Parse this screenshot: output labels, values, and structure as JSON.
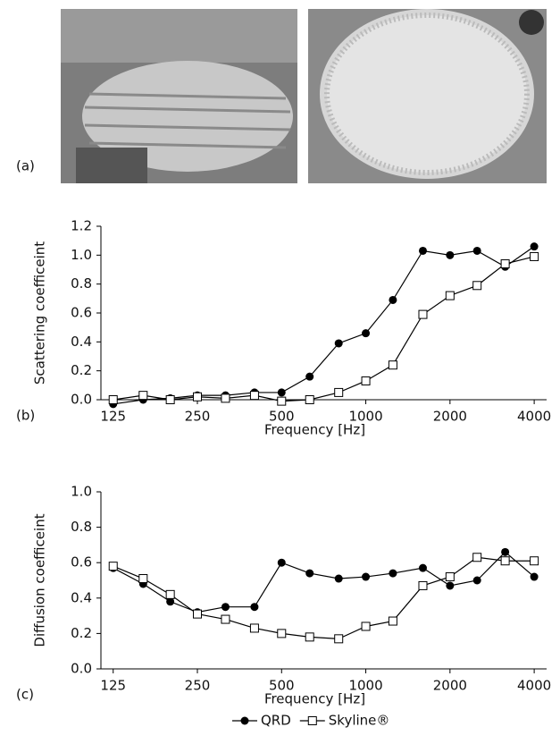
{
  "panel_labels": [
    "(a)",
    "(b)",
    "(c)"
  ],
  "chart_data": [
    {
      "type": "line",
      "x_label": "Frequency [Hz]",
      "y_label": "Scattering coefficeint",
      "x": [
        125,
        160,
        200,
        250,
        315,
        400,
        500,
        630,
        800,
        1000,
        1250,
        1600,
        2000,
        2500,
        3150,
        4000
      ],
      "x_scale": "log",
      "xlim": [
        113,
        4430
      ],
      "xticks": [
        125,
        250,
        500,
        1000,
        2000,
        4000
      ],
      "ylim": [
        0,
        1.2
      ],
      "yticks": [
        {
          "value": 0,
          "label": "0.0"
        },
        0.2,
        0.4,
        0.6,
        0.8,
        {
          "value": 1,
          "label": "1.0"
        },
        1.2
      ],
      "grid": false,
      "legend": false,
      "series": [
        {
          "name": "QRD",
          "color": "#000000",
          "marker": "circle",
          "values": [
            -0.03,
            0.0,
            0.01,
            0.03,
            0.03,
            0.05,
            0.05,
            0.16,
            0.39,
            0.46,
            0.69,
            1.03,
            1.0,
            1.03,
            0.92,
            1.06
          ]
        },
        {
          "name": "Skyline®",
          "color": "#000000",
          "marker": "square",
          "values": [
            0.0,
            0.03,
            0.0,
            0.02,
            0.01,
            0.03,
            -0.01,
            0.0,
            0.05,
            0.13,
            0.24,
            0.59,
            0.72,
            0.79,
            0.94,
            0.99
          ]
        }
      ]
    },
    {
      "type": "line",
      "x_label": "Frequency [Hz]",
      "y_label": "Diffusion coefficeint",
      "x": [
        125,
        160,
        200,
        250,
        315,
        400,
        500,
        630,
        800,
        1000,
        1250,
        1600,
        2000,
        2500,
        3150,
        4000
      ],
      "x_scale": "log",
      "xlim": [
        113,
        4430
      ],
      "xticks": [
        125,
        250,
        500,
        1000,
        2000,
        4000
      ],
      "ylim": [
        0,
        1
      ],
      "yticks": [
        {
          "value": 0,
          "label": "0.0"
        },
        0.2,
        0.4,
        0.6,
        0.8,
        {
          "value": 1,
          "label": "1.0"
        }
      ],
      "grid": false,
      "legend": "bottom",
      "series": [
        {
          "name": "QRD",
          "color": "#000000",
          "marker": "circle",
          "values": [
            0.57,
            0.48,
            0.38,
            0.32,
            0.35,
            0.35,
            0.6,
            0.54,
            0.51,
            0.52,
            0.54,
            0.57,
            0.47,
            0.5,
            0.66,
            0.52
          ]
        },
        {
          "name": "Skyline®",
          "color": "#000000",
          "marker": "square",
          "values": [
            0.58,
            0.51,
            0.42,
            0.31,
            0.28,
            0.23,
            0.2,
            0.18,
            0.17,
            0.24,
            0.27,
            0.47,
            0.52,
            0.63,
            0.61,
            0.61
          ]
        }
      ]
    }
  ]
}
